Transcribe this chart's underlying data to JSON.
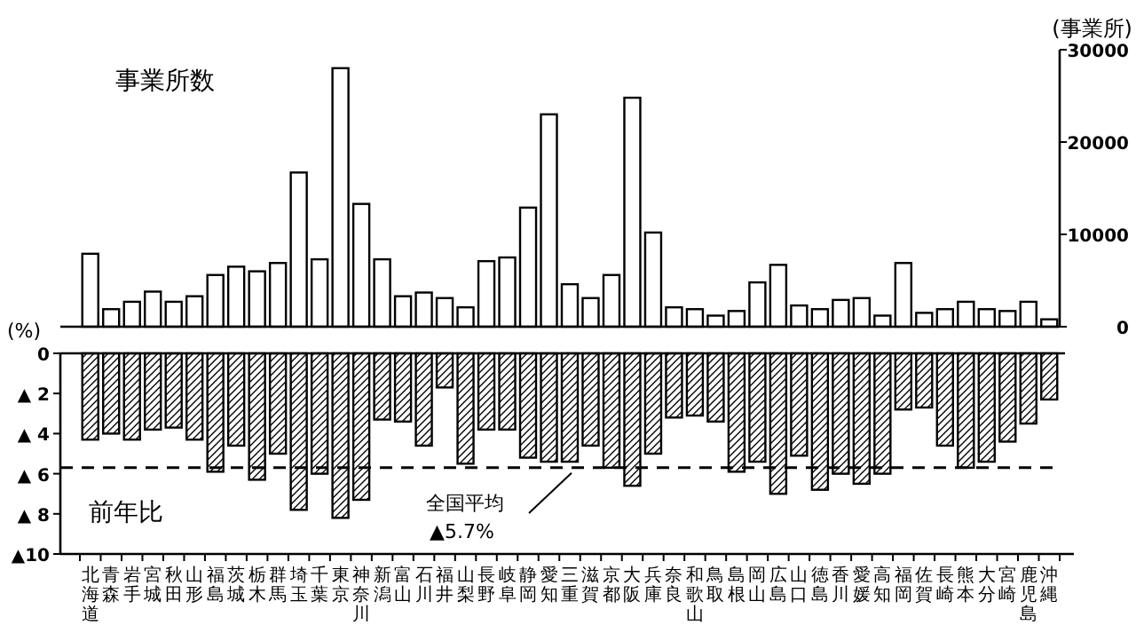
{
  "chart_data": [
    {
      "type": "bar",
      "title": "事業所数",
      "ylabel": "(事業所)",
      "tick_labels": "y",
      "color": "#ffffff",
      "categories": [
        null,
        null,
        null,
        null,
        null,
        null,
        null,
        null,
        null,
        null,
        null,
        null,
        null,
        null,
        null,
        null,
        null,
        null,
        null,
        null,
        null,
        null,
        null,
        null,
        null,
        null,
        null,
        null,
        null,
        null,
        null,
        null,
        null,
        null,
        null,
        null,
        null,
        null,
        null,
        null,
        null,
        null,
        null,
        null,
        null,
        null,
        null
      ],
      "values": [
        7900,
        1900,
        2700,
        3800,
        2700,
        3300,
        5600,
        6500,
        6000,
        6900,
        16700,
        7300,
        28000,
        13300,
        7300,
        3300,
        3700,
        3100,
        2100,
        7100,
        7500,
        12900,
        23000,
        4600,
        3100,
        5600,
        24800,
        10200,
        2100,
        1900,
        1200,
        1700,
        4800,
        6700,
        2300,
        1900,
        2900,
        3100,
        1200,
        6900,
        1500,
        1900,
        2700,
        1900,
        1700,
        2700,
        800
      ],
      "ylim": [
        0,
        30000
      ],
      "yticks": [
        0,
        10000,
        20000,
        30000
      ]
    },
    {
      "type": "bar",
      "title": "前年比",
      "ylabel": "(%)",
      "color": "#ffffff",
      "categories": [
        "北海道",
        "青森",
        "岩手",
        "宮城",
        "秋田",
        "山形",
        "福島",
        "茨城",
        "栃木",
        "群馬",
        "埼玉",
        "千葉",
        "東京",
        "神奈川",
        "新潟",
        "富山",
        "石川",
        "福井",
        "山梨",
        "長野",
        "岐阜",
        "静岡",
        "愛知",
        "三重",
        "滋賀",
        "京都",
        "大阪",
        "兵庫",
        "奈良",
        "和歌山",
        "鳥取",
        "島根",
        "岡山",
        "広島",
        "山口",
        "徳島",
        "香川",
        "愛媛",
        "高知",
        "福岡",
        "佐賀",
        "長崎",
        "熊本",
        "大分",
        "宮崎",
        "鹿児島",
        "沖縄"
      ],
      "values": [
        -4.3,
        -4.0,
        -4.3,
        -3.8,
        -3.7,
        -4.3,
        -5.9,
        -4.6,
        -6.3,
        -5.0,
        -7.8,
        -6.0,
        -8.2,
        -7.3,
        -3.3,
        -3.4,
        -4.6,
        -1.7,
        -5.5,
        -3.8,
        -3.8,
        -5.2,
        -5.4,
        -5.4,
        -4.6,
        -5.7,
        -6.6,
        -5.0,
        -3.2,
        -3.1,
        -3.4,
        -5.9,
        -5.4,
        -7.0,
        -5.1,
        -6.8,
        -6.0,
        -6.5,
        -6.0,
        -2.8,
        -2.7,
        -4.6,
        -5.7,
        -5.4,
        -4.4,
        -3.5,
        -2.3
      ],
      "ylim": [
        -10,
        0
      ],
      "yticks": [
        0,
        {
          "value": -2,
          "label": "▲ 2"
        },
        {
          "value": -4,
          "label": "▲ 4"
        },
        {
          "value": -6,
          "label": "▲ 6"
        },
        {
          "value": -8,
          "label": "▲ 8"
        },
        {
          "value": -10,
          "label": "▲10"
        }
      ],
      "ref_lines": [
        {
          "axis": "y",
          "value": -5.7,
          "label": "全国平均 ▲5.7%",
          "line_style": "dashed"
        }
      ]
    }
  ]
}
